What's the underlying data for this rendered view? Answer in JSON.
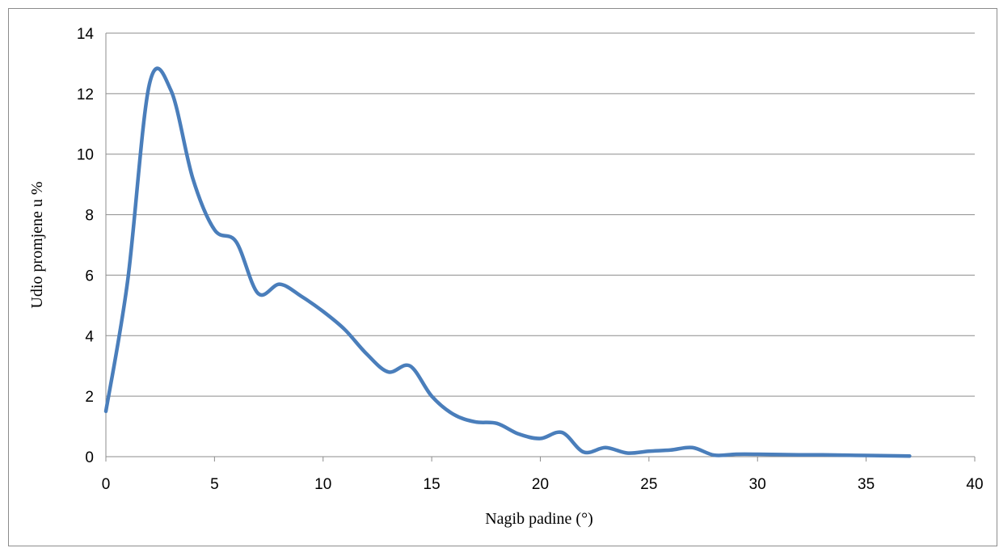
{
  "chart_data": {
    "type": "line",
    "xlabel": "Nagib padine (°)",
    "ylabel": "Udio promjene u %",
    "xlim": [
      0,
      40
    ],
    "ylim": [
      0,
      14
    ],
    "xticks": [
      0,
      5,
      10,
      15,
      20,
      25,
      30,
      35,
      40
    ],
    "yticks": [
      0,
      2,
      4,
      6,
      8,
      10,
      12,
      14
    ],
    "grid": "horizontal",
    "legend": "none",
    "series": [
      {
        "color": "#4a7ebb",
        "smooth": true,
        "x": [
          0,
          1,
          2,
          3,
          4,
          5,
          6,
          7,
          8,
          9,
          10,
          11,
          12,
          13,
          14,
          15,
          16,
          17,
          18,
          19,
          20,
          21,
          22,
          23,
          24,
          25,
          26,
          27,
          28,
          29,
          30,
          31,
          32,
          33,
          34,
          35,
          36,
          37
        ],
        "y": [
          1.5,
          5.8,
          12.3,
          12.1,
          9.2,
          7.5,
          7.1,
          5.4,
          5.7,
          5.3,
          4.8,
          4.2,
          3.4,
          2.8,
          3.0,
          2.0,
          1.4,
          1.15,
          1.1,
          0.75,
          0.6,
          0.8,
          0.15,
          0.3,
          0.12,
          0.18,
          0.22,
          0.3,
          0.05,
          0.08,
          0.08,
          0.07,
          0.06,
          0.06,
          0.05,
          0.04,
          0.03,
          0.02
        ]
      }
    ]
  }
}
